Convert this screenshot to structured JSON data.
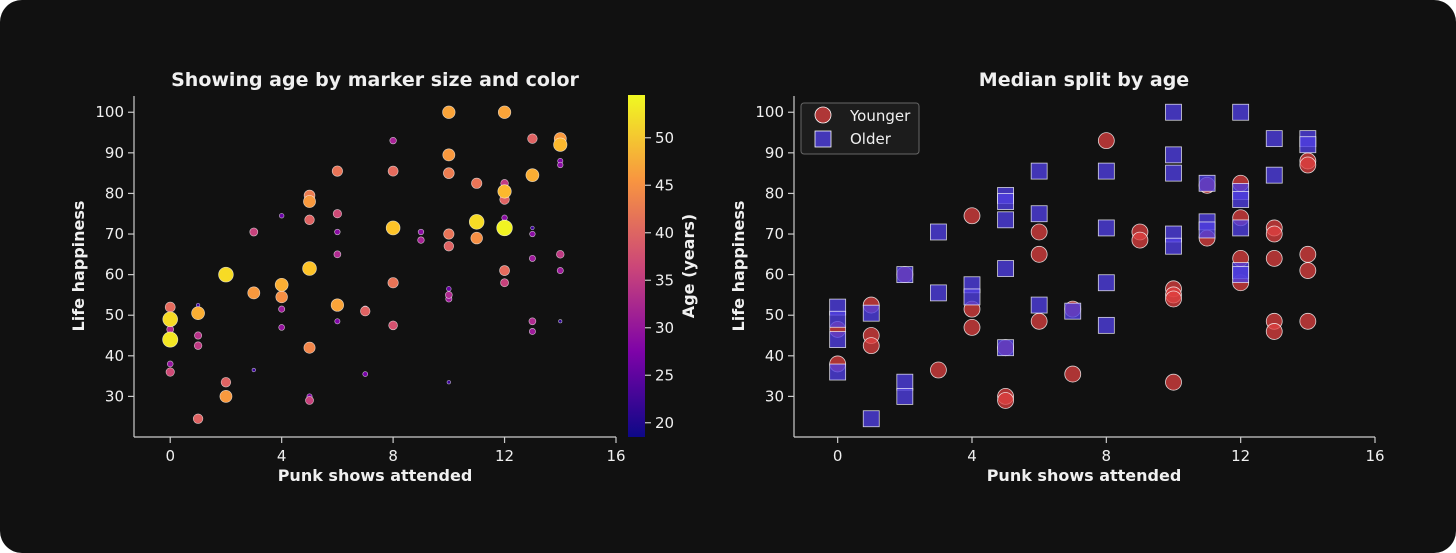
{
  "chart_data": [
    {
      "type": "scatter",
      "title": "Showing age by marker size and color",
      "xlabel": "Punk shows attended",
      "ylabel": "Life happiness",
      "xlim": [
        -1.3,
        16
      ],
      "ylim": [
        20,
        104
      ],
      "xticks": [
        0,
        4,
        8,
        12,
        16
      ],
      "yticks": [
        30,
        40,
        50,
        60,
        70,
        80,
        90,
        100
      ],
      "colorbar": {
        "label": "Age (years)",
        "range": [
          18.5,
          54.5
        ],
        "ticks": [
          20,
          25,
          30,
          35,
          40,
          45,
          50
        ],
        "colormap": "plasma"
      },
      "points": [
        {
          "x": 0,
          "y": 52,
          "age": 41
        },
        {
          "x": 0,
          "y": 49,
          "age": 52
        },
        {
          "x": 0,
          "y": 46.5,
          "age": 33
        },
        {
          "x": 0,
          "y": 44,
          "age": 53
        },
        {
          "x": 0,
          "y": 38,
          "age": 30
        },
        {
          "x": 0,
          "y": 36,
          "age": 37
        },
        {
          "x": 1,
          "y": 52.5,
          "age": 22
        },
        {
          "x": 1,
          "y": 50.5,
          "age": 48
        },
        {
          "x": 1,
          "y": 45,
          "age": 34
        },
        {
          "x": 1,
          "y": 42.5,
          "age": 35
        },
        {
          "x": 1,
          "y": 24.5,
          "age": 40
        },
        {
          "x": 2,
          "y": 60,
          "age": 52
        },
        {
          "x": 2,
          "y": 33.5,
          "age": 40
        },
        {
          "x": 2,
          "y": 30,
          "age": 46
        },
        {
          "x": 3,
          "y": 70.5,
          "age": 36
        },
        {
          "x": 3,
          "y": 55.5,
          "age": 46
        },
        {
          "x": 3,
          "y": 36.5,
          "age": 22
        },
        {
          "x": 4,
          "y": 74.5,
          "age": 26
        },
        {
          "x": 4,
          "y": 57.5,
          "age": 48
        },
        {
          "x": 4,
          "y": 54.5,
          "age": 45
        },
        {
          "x": 4,
          "y": 51.5,
          "age": 31
        },
        {
          "x": 4,
          "y": 47,
          "age": 30
        },
        {
          "x": 5,
          "y": 79.5,
          "age": 43
        },
        {
          "x": 5,
          "y": 78,
          "age": 46
        },
        {
          "x": 5,
          "y": 73.5,
          "age": 40
        },
        {
          "x": 5,
          "y": 61.5,
          "age": 50
        },
        {
          "x": 5,
          "y": 42,
          "age": 44
        },
        {
          "x": 5,
          "y": 42,
          "age": 25
        },
        {
          "x": 5,
          "y": 30,
          "age": 28
        },
        {
          "x": 5,
          "y": 29,
          "age": 36
        },
        {
          "x": 6,
          "y": 85.5,
          "age": 42
        },
        {
          "x": 6,
          "y": 75,
          "age": 37
        },
        {
          "x": 6,
          "y": 70.5,
          "age": 29
        },
        {
          "x": 6,
          "y": 65,
          "age": 33
        },
        {
          "x": 6,
          "y": 52.5,
          "age": 47
        },
        {
          "x": 6,
          "y": 48.5,
          "age": 28
        },
        {
          "x": 7,
          "y": 51.5,
          "age": 31
        },
        {
          "x": 7,
          "y": 51,
          "age": 40
        },
        {
          "x": 7,
          "y": 35.5,
          "age": 27
        },
        {
          "x": 8,
          "y": 93,
          "age": 32
        },
        {
          "x": 8,
          "y": 85.5,
          "age": 41
        },
        {
          "x": 8,
          "y": 71.5,
          "age": 50
        },
        {
          "x": 8,
          "y": 58,
          "age": 42
        },
        {
          "x": 8,
          "y": 47.5,
          "age": 38
        },
        {
          "x": 9,
          "y": 70.5,
          "age": 29
        },
        {
          "x": 9,
          "y": 68.5,
          "age": 32
        },
        {
          "x": 10,
          "y": 100,
          "age": 47
        },
        {
          "x": 10,
          "y": 89.5,
          "age": 46
        },
        {
          "x": 10,
          "y": 85,
          "age": 43
        },
        {
          "x": 10,
          "y": 70,
          "age": 42
        },
        {
          "x": 10,
          "y": 67,
          "age": 40
        },
        {
          "x": 10,
          "y": 56.5,
          "age": 26
        },
        {
          "x": 10,
          "y": 55,
          "age": 33
        },
        {
          "x": 10,
          "y": 54,
          "age": 31
        },
        {
          "x": 10,
          "y": 33.5,
          "age": 22
        },
        {
          "x": 11,
          "y": 82.5,
          "age": 42
        },
        {
          "x": 11,
          "y": 82.5,
          "age": 36
        },
        {
          "x": 11,
          "y": 73,
          "age": 52
        },
        {
          "x": 11,
          "y": 69,
          "age": 45
        },
        {
          "x": 11,
          "y": 68.5,
          "age": 29
        },
        {
          "x": 12,
          "y": 100,
          "age": 47
        },
        {
          "x": 12,
          "y": 82.5,
          "age": 35
        },
        {
          "x": 12,
          "y": 80.5,
          "age": 49
        },
        {
          "x": 12,
          "y": 78.5,
          "age": 40
        },
        {
          "x": 12,
          "y": 74,
          "age": 29
        },
        {
          "x": 12,
          "y": 71.5,
          "age": 54
        },
        {
          "x": 12,
          "y": 61,
          "age": 41
        },
        {
          "x": 12,
          "y": 58,
          "age": 36
        },
        {
          "x": 13,
          "y": 93.5,
          "age": 40
        },
        {
          "x": 13,
          "y": 84.5,
          "age": 48
        },
        {
          "x": 13,
          "y": 71.5,
          "age": 22
        },
        {
          "x": 13,
          "y": 70,
          "age": 29
        },
        {
          "x": 13,
          "y": 64,
          "age": 31
        },
        {
          "x": 13,
          "y": 48.5,
          "age": 33
        },
        {
          "x": 13,
          "y": 46,
          "age": 31
        },
        {
          "x": 14,
          "y": 93.5,
          "age": 46
        },
        {
          "x": 14,
          "y": 92,
          "age": 49
        },
        {
          "x": 14,
          "y": 88,
          "age": 28
        },
        {
          "x": 14,
          "y": 87,
          "age": 29
        },
        {
          "x": 14,
          "y": 65,
          "age": 35
        },
        {
          "x": 14,
          "y": 61,
          "age": 31
        },
        {
          "x": 14,
          "y": 48.5,
          "age": 21
        }
      ]
    },
    {
      "type": "scatter",
      "title": "Median split by age",
      "xlabel": "Punk shows attended",
      "ylabel": "Life happiness",
      "xlim": [
        -1.3,
        16
      ],
      "ylim": [
        20,
        104
      ],
      "xticks": [
        0,
        4,
        8,
        12,
        16
      ],
      "yticks": [
        30,
        40,
        50,
        60,
        70,
        80,
        90,
        100
      ],
      "series": [
        {
          "name": "Younger",
          "marker": "circle",
          "color": "#e04040",
          "points": [
            [
              0,
              46.5
            ],
            [
              0,
              38
            ],
            [
              1,
              52.5
            ],
            [
              1,
              45
            ],
            [
              1,
              42.5
            ],
            [
              2,
              60
            ],
            [
              3,
              36.5
            ],
            [
              4,
              74.5
            ],
            [
              4,
              51.5
            ],
            [
              4,
              47
            ],
            [
              5,
              42
            ],
            [
              5,
              30
            ],
            [
              5,
              29
            ],
            [
              6,
              70.5
            ],
            [
              6,
              65
            ],
            [
              6,
              48.5
            ],
            [
              7,
              51.5
            ],
            [
              7,
              35.5
            ],
            [
              8,
              93
            ],
            [
              9,
              70.5
            ],
            [
              9,
              68.5
            ],
            [
              10,
              56.5
            ],
            [
              10,
              55
            ],
            [
              10,
              54
            ],
            [
              10,
              33.5
            ],
            [
              11,
              82
            ],
            [
              11,
              69
            ],
            [
              12,
              82.5
            ],
            [
              12,
              74
            ],
            [
              12,
              64
            ],
            [
              12,
              58
            ],
            [
              13,
              71.5
            ],
            [
              13,
              70
            ],
            [
              13,
              64
            ],
            [
              13,
              48.5
            ],
            [
              13,
              46
            ],
            [
              14,
              88
            ],
            [
              14,
              87
            ],
            [
              14,
              65
            ],
            [
              14,
              61
            ],
            [
              14,
              48.5
            ]
          ]
        },
        {
          "name": "Older",
          "marker": "square",
          "color": "#4f3fe0",
          "points": [
            [
              0,
              52
            ],
            [
              0,
              49
            ],
            [
              0,
              44
            ],
            [
              0,
              36
            ],
            [
              1,
              50.5
            ],
            [
              1,
              24.5
            ],
            [
              2,
              60
            ],
            [
              2,
              33.5
            ],
            [
              2,
              30
            ],
            [
              3,
              70.5
            ],
            [
              3,
              55.5
            ],
            [
              4,
              57.5
            ],
            [
              4,
              54.5
            ],
            [
              5,
              79.5
            ],
            [
              5,
              78
            ],
            [
              5,
              73.5
            ],
            [
              5,
              61.5
            ],
            [
              5,
              42
            ],
            [
              6,
              85.5
            ],
            [
              6,
              75
            ],
            [
              6,
              52.5
            ],
            [
              7,
              51
            ],
            [
              8,
              85.5
            ],
            [
              8,
              71.5
            ],
            [
              8,
              58
            ],
            [
              8,
              47.5
            ],
            [
              10,
              100
            ],
            [
              10,
              89.5
            ],
            [
              10,
              85
            ],
            [
              10,
              70
            ],
            [
              10,
              67
            ],
            [
              11,
              82.5
            ],
            [
              11,
              73
            ],
            [
              11,
              71
            ],
            [
              12,
              100
            ],
            [
              12,
              80.5
            ],
            [
              12,
              78.5
            ],
            [
              12,
              71.5
            ],
            [
              12,
              61
            ],
            [
              12,
              60
            ],
            [
              13,
              93.5
            ],
            [
              13,
              84.5
            ],
            [
              14,
              93.5
            ],
            [
              14,
              92
            ]
          ]
        }
      ]
    }
  ]
}
